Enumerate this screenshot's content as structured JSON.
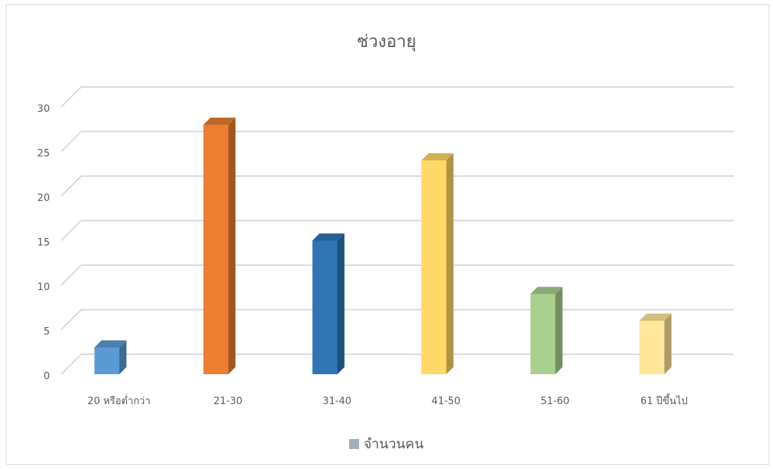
{
  "chart_data": {
    "type": "bar",
    "title": "ช่วงอายุ",
    "categories": [
      "20 หรือต่ำกว่า",
      "21-30",
      "31-40",
      "41-50",
      "51-60",
      "61 ปีขึ้นไป"
    ],
    "series": [
      {
        "name": "จำนวนคน",
        "values": [
          3,
          28,
          15,
          24,
          9,
          6
        ]
      }
    ],
    "bar_colors": [
      "#5b9bd5",
      "#ed7d31",
      "#2e75b6",
      "#ffd966",
      "#a9d18e",
      "#ffe699"
    ],
    "yticks": [
      0,
      5,
      10,
      15,
      20,
      25,
      30
    ],
    "ylim": [
      0,
      30
    ],
    "grid": true,
    "legend_position": "bottom",
    "legend_color": "#a5adbe",
    "style": "3d-column"
  }
}
